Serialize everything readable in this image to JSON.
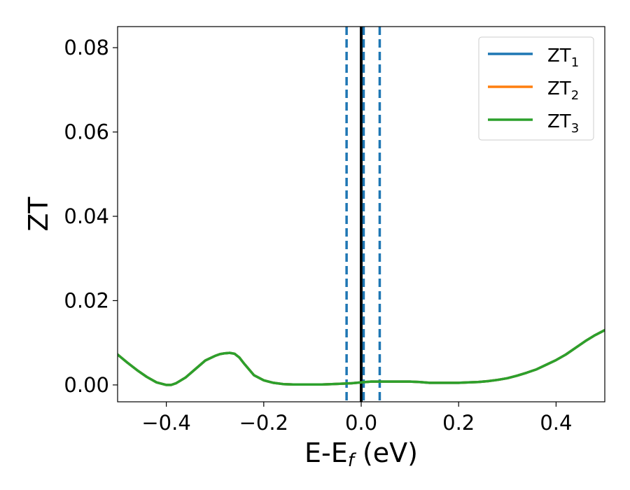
{
  "chart_data": {
    "type": "line",
    "xlabel": "E-E",
    "xlabel_sub": "f",
    "xlabel_unit": " (eV)",
    "ylabel": "ZT",
    "xlim": [
      -0.5,
      0.5
    ],
    "ylim": [
      -0.004,
      0.085
    ],
    "xticks": [
      -0.4,
      -0.2,
      0.0,
      0.2,
      0.4
    ],
    "xtick_labels": [
      "−0.4",
      "−0.2",
      "0.0",
      "0.2",
      "0.4"
    ],
    "yticks": [
      0.0,
      0.02,
      0.04,
      0.06,
      0.08
    ],
    "ytick_labels": [
      "0.00",
      "0.02",
      "0.04",
      "0.06",
      "0.08"
    ],
    "grid": false,
    "legend_position": "top-right",
    "x": [
      -0.5,
      -0.48,
      -0.46,
      -0.44,
      -0.42,
      -0.4,
      -0.39,
      -0.38,
      -0.36,
      -0.34,
      -0.32,
      -0.3,
      -0.29,
      -0.28,
      -0.27,
      -0.26,
      -0.25,
      -0.24,
      -0.22,
      -0.2,
      -0.18,
      -0.16,
      -0.14,
      -0.12,
      -0.1,
      -0.08,
      -0.06,
      -0.04,
      -0.02,
      0.0,
      0.02,
      0.04,
      0.06,
      0.08,
      0.1,
      0.12,
      0.14,
      0.16,
      0.18,
      0.2,
      0.22,
      0.24,
      0.26,
      0.28,
      0.3,
      0.32,
      0.34,
      0.36,
      0.38,
      0.4,
      0.42,
      0.44,
      0.46,
      0.48,
      0.5
    ],
    "series": [
      {
        "name": "ZT",
        "sub": "1",
        "color": "#1f77b4",
        "values": [
          0.0072,
          0.0053,
          0.0035,
          0.0019,
          0.0006,
          0.0,
          0.0,
          0.0004,
          0.0018,
          0.0038,
          0.0058,
          0.0069,
          0.0073,
          0.0075,
          0.0076,
          0.0074,
          0.0065,
          0.005,
          0.0023,
          0.0011,
          0.0005,
          0.0002,
          0.0001,
          0.0001,
          0.0001,
          0.0001,
          0.0002,
          0.0003,
          0.0004,
          0.0006,
          0.0008,
          0.0008,
          0.0008,
          0.0008,
          0.0008,
          0.0007,
          0.0005,
          0.0005,
          0.0005,
          0.0005,
          0.0006,
          0.0007,
          0.0009,
          0.0012,
          0.0016,
          0.0022,
          0.0029,
          0.0037,
          0.0048,
          0.0059,
          0.0072,
          0.0088,
          0.0104,
          0.0118,
          0.013
        ]
      },
      {
        "name": "ZT",
        "sub": "2",
        "color": "#ff7f0e",
        "values": [
          0.0072,
          0.0053,
          0.0035,
          0.0019,
          0.0006,
          0.0,
          0.0,
          0.0004,
          0.0018,
          0.0038,
          0.0058,
          0.0069,
          0.0073,
          0.0075,
          0.0076,
          0.0074,
          0.0065,
          0.005,
          0.0023,
          0.0011,
          0.0005,
          0.0002,
          0.0001,
          0.0001,
          0.0001,
          0.0001,
          0.0002,
          0.0003,
          0.0004,
          0.0006,
          0.0008,
          0.0008,
          0.0008,
          0.0008,
          0.0008,
          0.0007,
          0.0005,
          0.0005,
          0.0005,
          0.0005,
          0.0006,
          0.0007,
          0.0009,
          0.0012,
          0.0016,
          0.0022,
          0.0029,
          0.0037,
          0.0048,
          0.0059,
          0.0072,
          0.0088,
          0.0104,
          0.0118,
          0.013
        ]
      },
      {
        "name": "ZT",
        "sub": "3",
        "color": "#2ca02c",
        "values": [
          0.0072,
          0.0053,
          0.0035,
          0.0019,
          0.0006,
          0.0,
          0.0,
          0.0004,
          0.0018,
          0.0038,
          0.0058,
          0.0069,
          0.0073,
          0.0075,
          0.0076,
          0.0074,
          0.0065,
          0.005,
          0.0023,
          0.0011,
          0.0005,
          0.0002,
          0.0001,
          0.0001,
          0.0001,
          0.0001,
          0.0002,
          0.0003,
          0.0004,
          0.0006,
          0.0008,
          0.0008,
          0.0008,
          0.0008,
          0.0008,
          0.0007,
          0.0005,
          0.0005,
          0.0005,
          0.0005,
          0.0006,
          0.0007,
          0.0009,
          0.0012,
          0.0016,
          0.0022,
          0.0029,
          0.0037,
          0.0048,
          0.0059,
          0.0072,
          0.0088,
          0.0104,
          0.0118,
          0.013
        ]
      }
    ],
    "vertical_lines": [
      {
        "x": 0.0,
        "style": "solid",
        "color": "#000000"
      },
      {
        "x": -0.03,
        "style": "dashed",
        "color": "#1f77b4"
      },
      {
        "x": 0.005,
        "style": "dashed",
        "color": "#1f77b4"
      },
      {
        "x": 0.038,
        "style": "dashed",
        "color": "#1f77b4"
      }
    ]
  }
}
